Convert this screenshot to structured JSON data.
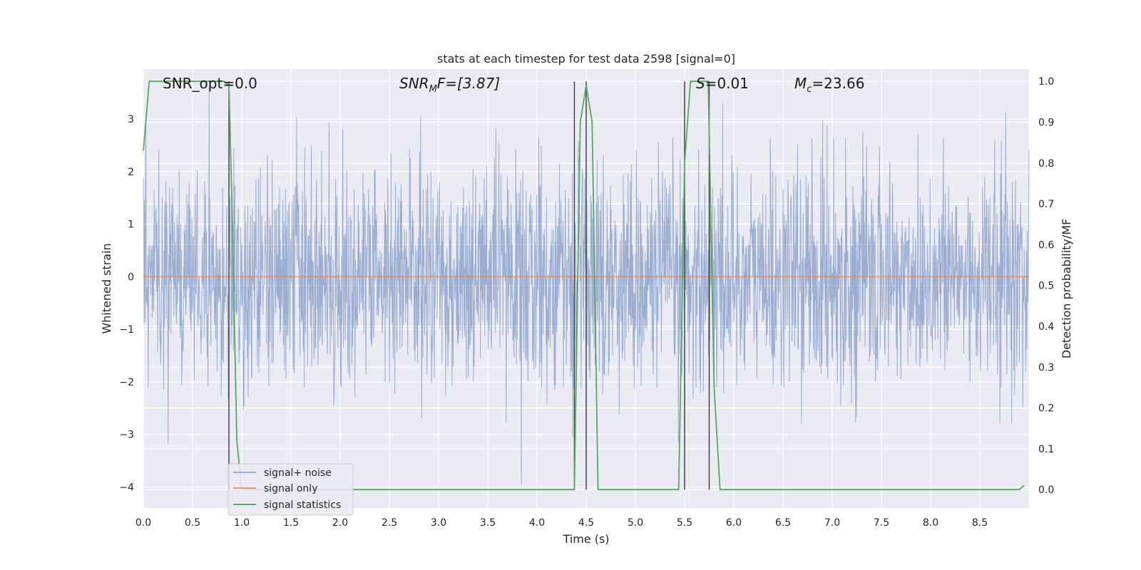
{
  "chart_data": {
    "type": "line",
    "title": "stats at each timestep for test data 2598 [signal=0]",
    "xlabel": "Time (s)",
    "ylabel": "Whitened strain",
    "y2label": "Detection probability/MF",
    "xlim": [
      0.0,
      9.0
    ],
    "ylim": [
      -4.4,
      3.95
    ],
    "y2lim": [
      -0.045,
      1.03
    ],
    "xticks": [
      "0.0",
      "0.5",
      "1.0",
      "1.5",
      "2.0",
      "2.5",
      "3.0",
      "3.5",
      "4.0",
      "4.5",
      "5.0",
      "5.5",
      "6.0",
      "6.5",
      "7.0",
      "7.5",
      "8.0",
      "8.5"
    ],
    "yticks": [
      "3",
      "2",
      "1",
      "0",
      "−1",
      "−2",
      "−3",
      "−4"
    ],
    "y2ticks": [
      "1.0",
      "0.9",
      "0.8",
      "0.7",
      "0.6",
      "0.5",
      "0.4",
      "0.3",
      "0.2",
      "0.1",
      "0.0"
    ],
    "grid": true,
    "legend_position": "lower-left",
    "annotations": {
      "snr_opt": "SNR_opt=0.0",
      "snr_mf_base": "SNR",
      "snr_mf_sub": "M",
      "snr_mf_rest": "F=[3.87]",
      "s_sym": "S",
      "s_val": "=0.01",
      "mc_base": "M",
      "mc_sub": "c",
      "mc_val": "=23.66"
    },
    "series": [
      {
        "name": "signal+ noise",
        "color": "#4c72b0",
        "description_values": "noise-like whitened strain spanning roughly -3.9 to 3.6 over 0-9 s"
      },
      {
        "name": "signal only",
        "color": "#dd8452",
        "x": [
          0.0,
          9.0
        ],
        "y": [
          0.0,
          0.0
        ]
      },
      {
        "name": "signal statistics",
        "color": "#55a868",
        "axis": "right",
        "x": [
          0.0,
          0.06,
          0.12,
          0.25,
          0.4,
          0.55,
          0.7,
          0.82,
          0.87,
          0.9,
          0.95,
          1.0,
          1.05,
          1.5,
          2.0,
          3.0,
          4.0,
          4.32,
          4.38,
          4.44,
          4.5,
          4.56,
          4.62,
          5.0,
          5.44,
          5.5,
          5.56,
          5.62,
          5.7,
          5.74,
          5.8,
          5.86,
          5.88,
          6.5,
          7.0,
          8.0,
          8.9,
          8.95
        ],
        "y": [
          0.83,
          1.0,
          1.0,
          1.0,
          1.0,
          1.0,
          1.0,
          1.0,
          0.99,
          0.7,
          0.12,
          0.0,
          0.0,
          0.0,
          0.0,
          0.0,
          0.0,
          0.0,
          0.0,
          0.9,
          0.99,
          0.9,
          0.0,
          0.0,
          0.0,
          0.8,
          1.0,
          1.0,
          1.0,
          1.0,
          0.25,
          0.0,
          0.0,
          0.0,
          0.0,
          0.0,
          0.0,
          0.01
        ]
      }
    ],
    "markers": {
      "color": "#444444",
      "x": [
        0.87,
        4.38,
        4.5,
        5.5,
        5.75
      ],
      "y2_range": [
        0.0,
        1.0
      ]
    }
  }
}
